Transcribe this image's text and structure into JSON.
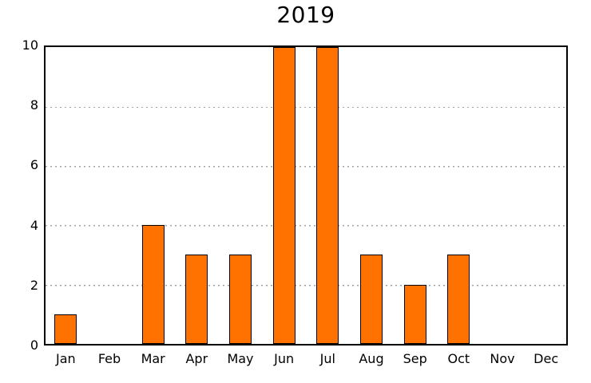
{
  "chart_data": {
    "type": "bar",
    "title": "2019",
    "categories": [
      "Jan",
      "Feb",
      "Mar",
      "Apr",
      "May",
      "Jun",
      "Jul",
      "Aug",
      "Sep",
      "Oct",
      "Nov",
      "Dec"
    ],
    "values": [
      1,
      0,
      4,
      3,
      3,
      10,
      10,
      3,
      2,
      3,
      0,
      0
    ],
    "xlabel": "",
    "ylabel": "",
    "ylim": [
      0,
      10
    ],
    "yticks": [
      0,
      2,
      4,
      6,
      8,
      10
    ],
    "grid": "horizontal dotted lines at y tick positions (2,4,6,8)",
    "legend": "none",
    "bar_color": "#ff7200",
    "bar_border_color": "#000000",
    "gridline_color": "#a3a3a3",
    "axis_box_color": "#000000",
    "background_color": "#ffffff"
  }
}
